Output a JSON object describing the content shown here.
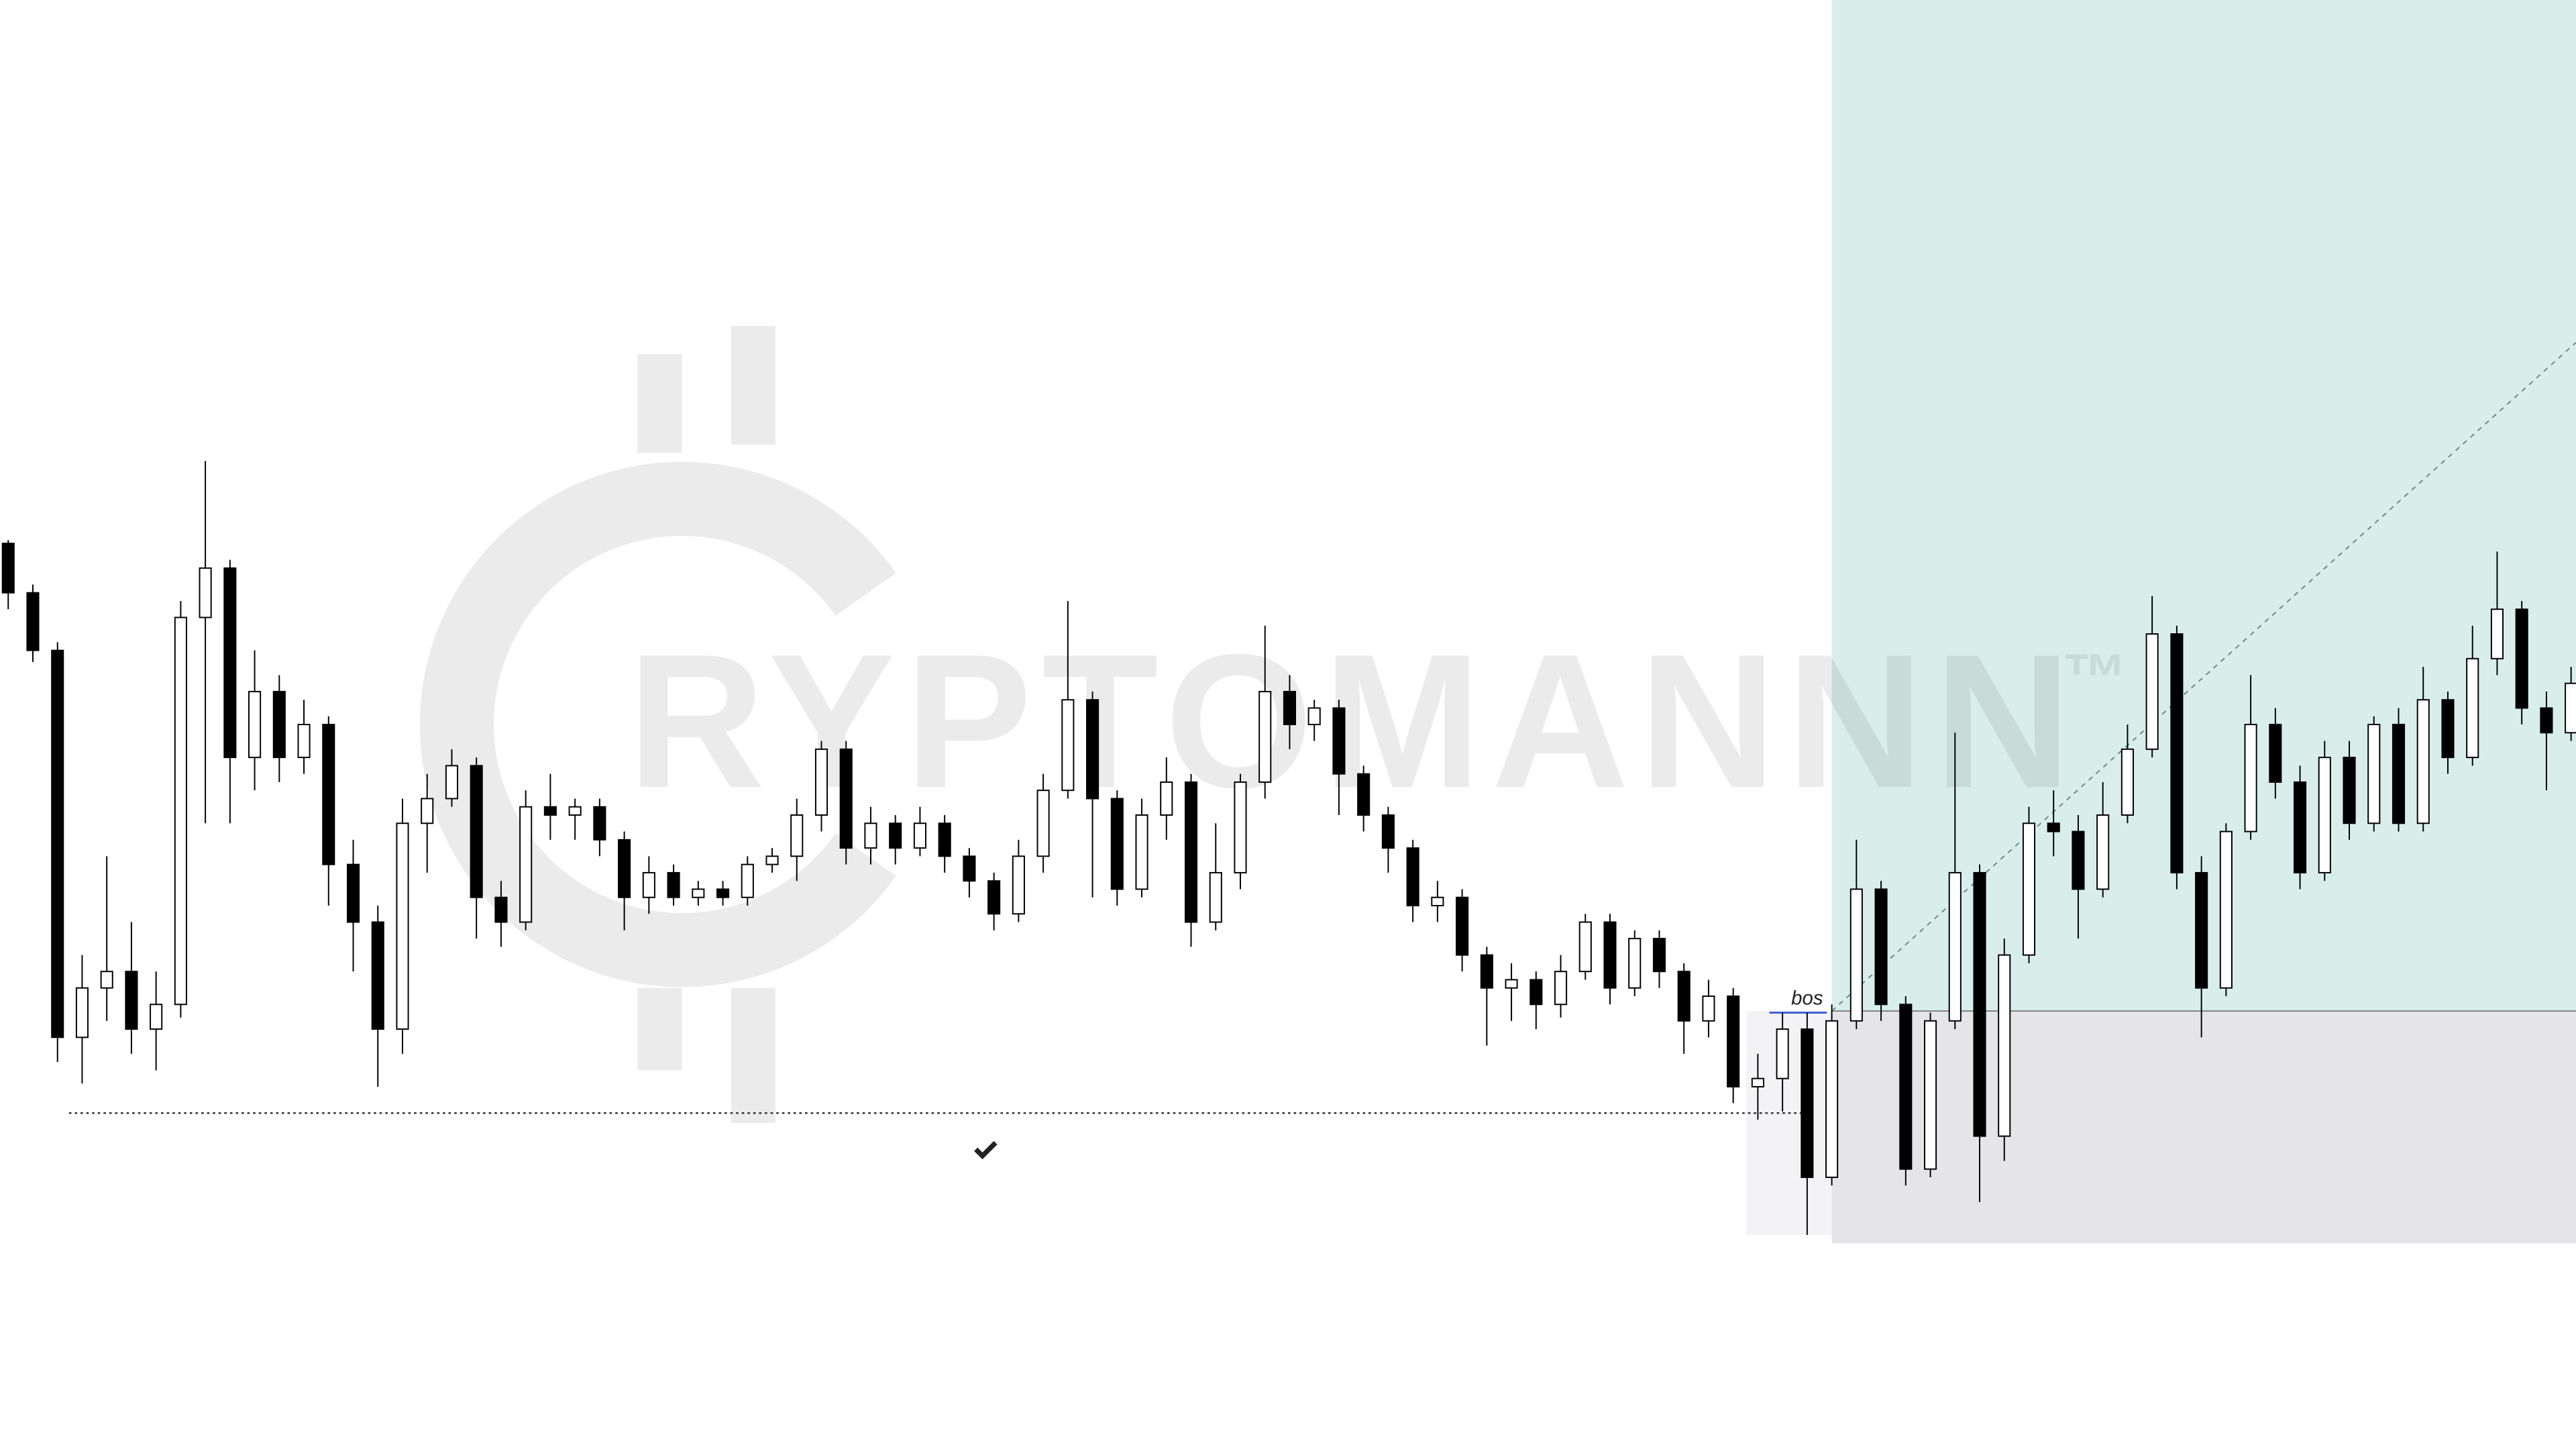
{
  "chart_data": {
    "type": "candlestick",
    "annotation": "bos",
    "watermark": {
      "text": "RYPTOMANNN",
      "mark": "™"
    },
    "up_color": "#ffffff",
    "down_color": "#000000",
    "ylim": [
      0,
      880
    ],
    "open": [
      550,
      520,
      485,
      250,
      280,
      290,
      255,
      270,
      505,
      535,
      420,
      460,
      420,
      440,
      355,
      320,
      255,
      380,
      395,
      415,
      335,
      320,
      390,
      385,
      390,
      370,
      335,
      350,
      335,
      340,
      335,
      355,
      360,
      385,
      425,
      365,
      380,
      365,
      380,
      360,
      345,
      325,
      360,
      400,
      455,
      395,
      340,
      385,
      405,
      320,
      350,
      405,
      460,
      440,
      450,
      410,
      385,
      365,
      330,
      335,
      300,
      280,
      285,
      270,
      290,
      320,
      280,
      310,
      290,
      260,
      275,
      220,
      225,
      255,
      165,
      260,
      340,
      270,
      170,
      260,
      350,
      190,
      300,
      380,
      375,
      340,
      385,
      425,
      495,
      350,
      280,
      375,
      440,
      405,
      350,
      420,
      380,
      440,
      380,
      455,
      420,
      480,
      510,
      450,
      435
    ],
    "high": [
      552,
      525,
      490,
      300,
      360,
      320,
      290,
      515,
      600,
      540,
      485,
      470,
      455,
      445,
      370,
      330,
      395,
      410,
      425,
      420,
      345,
      400,
      410,
      395,
      395,
      375,
      360,
      355,
      345,
      345,
      360,
      365,
      395,
      430,
      430,
      390,
      385,
      390,
      385,
      365,
      350,
      370,
      410,
      515,
      460,
      400,
      395,
      420,
      410,
      380,
      410,
      500,
      470,
      455,
      455,
      415,
      390,
      370,
      345,
      340,
      305,
      295,
      290,
      300,
      325,
      325,
      315,
      315,
      295,
      285,
      280,
      240,
      265,
      265,
      270,
      370,
      345,
      275,
      265,
      435,
      355,
      310,
      390,
      400,
      385,
      405,
      440,
      518,
      500,
      360,
      380,
      470,
      450,
      415,
      430,
      430,
      445,
      450,
      475,
      460,
      500,
      545,
      515,
      460,
      475
    ],
    "low": [
      510,
      478,
      235,
      222,
      260,
      240,
      230,
      262,
      380,
      380,
      400,
      405,
      410,
      330,
      290,
      220,
      240,
      350,
      390,
      310,
      305,
      315,
      370,
      370,
      360,
      315,
      325,
      330,
      330,
      330,
      330,
      350,
      345,
      375,
      355,
      355,
      355,
      360,
      350,
      335,
      315,
      320,
      350,
      395,
      335,
      330,
      335,
      370,
      305,
      315,
      340,
      395,
      425,
      430,
      385,
      375,
      350,
      320,
      320,
      290,
      245,
      260,
      255,
      262,
      285,
      270,
      275,
      280,
      240,
      250,
      210,
      200,
      205,
      130,
      160,
      255,
      260,
      160,
      165,
      255,
      150,
      175,
      295,
      360,
      310,
      335,
      380,
      420,
      340,
      250,
      275,
      370,
      395,
      340,
      345,
      370,
      375,
      375,
      375,
      410,
      415,
      470,
      440,
      400,
      430
    ],
    "close": [
      520,
      485,
      250,
      280,
      290,
      255,
      270,
      505,
      535,
      420,
      460,
      420,
      440,
      355,
      320,
      255,
      380,
      395,
      415,
      335,
      320,
      390,
      385,
      390,
      370,
      335,
      350,
      335,
      340,
      335,
      355,
      360,
      385,
      425,
      365,
      380,
      365,
      380,
      360,
      345,
      325,
      360,
      400,
      455,
      395,
      340,
      385,
      405,
      320,
      350,
      405,
      460,
      440,
      450,
      410,
      385,
      365,
      330,
      335,
      300,
      280,
      285,
      270,
      290,
      320,
      280,
      310,
      290,
      260,
      275,
      220,
      225,
      255,
      165,
      260,
      340,
      270,
      170,
      260,
      350,
      190,
      300,
      380,
      375,
      340,
      385,
      425,
      495,
      350,
      280,
      375,
      440,
      405,
      350,
      420,
      380,
      440,
      380,
      455,
      420,
      480,
      510,
      450,
      435,
      465
    ]
  }
}
